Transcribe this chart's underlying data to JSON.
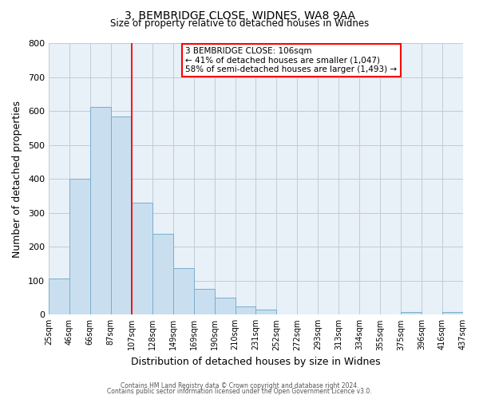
{
  "title_line1": "3, BEMBRIDGE CLOSE, WIDNES, WA8 9AA",
  "title_line2": "Size of property relative to detached houses in Widnes",
  "xlabel": "Distribution of detached houses by size in Widnes",
  "ylabel": "Number of detached properties",
  "footnote1": "Contains HM Land Registry data © Crown copyright and database right 2024.",
  "footnote2": "Contains public sector information licensed under the Open Government Licence v3.0.",
  "bin_labels": [
    "25sqm",
    "46sqm",
    "66sqm",
    "87sqm",
    "107sqm",
    "128sqm",
    "149sqm",
    "169sqm",
    "190sqm",
    "210sqm",
    "231sqm",
    "252sqm",
    "272sqm",
    "293sqm",
    "313sqm",
    "334sqm",
    "355sqm",
    "375sqm",
    "396sqm",
    "416sqm",
    "437sqm"
  ],
  "bar_heights": [
    106,
    400,
    612,
    583,
    330,
    237,
    137,
    76,
    50,
    25,
    15,
    0,
    0,
    0,
    0,
    0,
    0,
    7,
    0,
    8
  ],
  "bar_color": "#c9dff0",
  "bar_edge_color": "#7aadcc",
  "vline_bin_index": 4,
  "vline_color": "red",
  "ylim": [
    0,
    800
  ],
  "yticks": [
    0,
    100,
    200,
    300,
    400,
    500,
    600,
    700,
    800
  ],
  "annotation_box_text1": "3 BEMBRIDGE CLOSE: 106sqm",
  "annotation_box_text2": "← 41% of detached houses are smaller (1,047)",
  "annotation_box_text3": "58% of semi-detached houses are larger (1,493) →",
  "annotation_box_color": "white",
  "annotation_box_edge_color": "red",
  "background_color": "#ffffff",
  "plot_background_color": "#e8f0f8",
  "grid_color": "#c0ccd8"
}
